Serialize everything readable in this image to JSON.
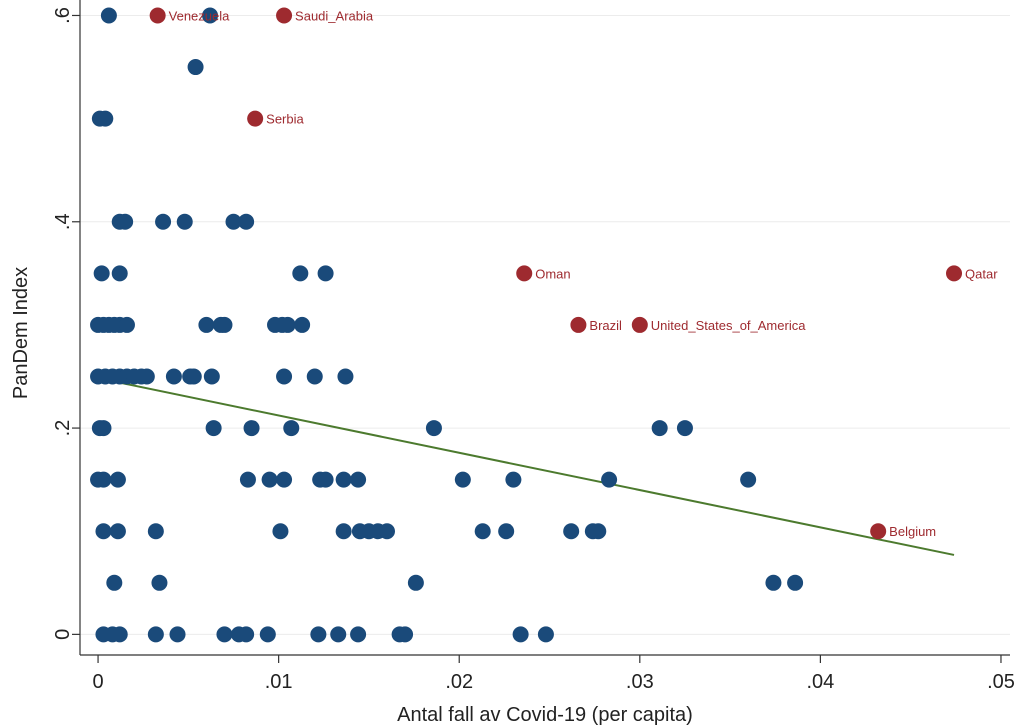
{
  "chart_data": {
    "type": "scatter",
    "title": "",
    "xlabel": "Antal fall av Covid-19 (per capita)",
    "ylabel": "PanDem Index",
    "xlim": [
      -0.001,
      0.0505
    ],
    "ylim": [
      -0.02,
      0.615
    ],
    "grid": true,
    "x_ticks": [
      {
        "value": 0,
        "label": "0"
      },
      {
        "value": 0.01,
        "label": ".01"
      },
      {
        "value": 0.02,
        "label": ".02"
      },
      {
        "value": 0.03,
        "label": ".03"
      },
      {
        "value": 0.04,
        "label": ".04"
      },
      {
        "value": 0.05,
        "label": ".05"
      }
    ],
    "y_ticks": [
      {
        "value": 0,
        "label": "0"
      },
      {
        "value": 0.2,
        "label": ".2"
      },
      {
        "value": 0.4,
        "label": ".4"
      },
      {
        "value": 0.6,
        "label": ".6"
      }
    ],
    "colors": {
      "points": "#1a4a7a",
      "labeled_points": "#9e2a2f",
      "fit_line": "#4c7a2e",
      "grid": "#ececec",
      "axis": "#333333"
    },
    "points": [
      [
        0.0006,
        0.6
      ],
      [
        0.0062,
        0.6
      ],
      [
        0.0054,
        0.55
      ],
      [
        0.0001,
        0.5
      ],
      [
        0.0004,
        0.5
      ],
      [
        0.0012,
        0.4
      ],
      [
        0.0015,
        0.4
      ],
      [
        0.0036,
        0.4
      ],
      [
        0.0048,
        0.4
      ],
      [
        0.0075,
        0.4
      ],
      [
        0.0082,
        0.4
      ],
      [
        0.0002,
        0.35
      ],
      [
        0.0012,
        0.35
      ],
      [
        0.0112,
        0.35
      ],
      [
        0.0126,
        0.35
      ],
      [
        0.0,
        0.3
      ],
      [
        0.0003,
        0.3
      ],
      [
        0.0006,
        0.3
      ],
      [
        0.0009,
        0.3
      ],
      [
        0.0012,
        0.3
      ],
      [
        0.0016,
        0.3
      ],
      [
        0.006,
        0.3
      ],
      [
        0.0068,
        0.3
      ],
      [
        0.007,
        0.3
      ],
      [
        0.0098,
        0.3
      ],
      [
        0.0102,
        0.3
      ],
      [
        0.0105,
        0.3
      ],
      [
        0.0113,
        0.3
      ],
      [
        0.0,
        0.25
      ],
      [
        0.0004,
        0.25
      ],
      [
        0.0008,
        0.25
      ],
      [
        0.0012,
        0.25
      ],
      [
        0.0016,
        0.25
      ],
      [
        0.002,
        0.25
      ],
      [
        0.0024,
        0.25
      ],
      [
        0.0027,
        0.25
      ],
      [
        0.0042,
        0.25
      ],
      [
        0.0051,
        0.25
      ],
      [
        0.0053,
        0.25
      ],
      [
        0.0063,
        0.25
      ],
      [
        0.0103,
        0.25
      ],
      [
        0.012,
        0.25
      ],
      [
        0.0137,
        0.25
      ],
      [
        0.0001,
        0.2
      ],
      [
        0.0003,
        0.2
      ],
      [
        0.0064,
        0.2
      ],
      [
        0.0085,
        0.2
      ],
      [
        0.0107,
        0.2
      ],
      [
        0.0186,
        0.2
      ],
      [
        0.0311,
        0.2
      ],
      [
        0.0325,
        0.2
      ],
      [
        0.0,
        0.15
      ],
      [
        0.0003,
        0.15
      ],
      [
        0.0011,
        0.15
      ],
      [
        0.0083,
        0.15
      ],
      [
        0.0095,
        0.15
      ],
      [
        0.0103,
        0.15
      ],
      [
        0.0123,
        0.15
      ],
      [
        0.0126,
        0.15
      ],
      [
        0.0136,
        0.15
      ],
      [
        0.0144,
        0.15
      ],
      [
        0.0202,
        0.15
      ],
      [
        0.023,
        0.15
      ],
      [
        0.0283,
        0.15
      ],
      [
        0.036,
        0.15
      ],
      [
        0.0003,
        0.1
      ],
      [
        0.0011,
        0.1
      ],
      [
        0.0032,
        0.1
      ],
      [
        0.0101,
        0.1
      ],
      [
        0.0136,
        0.1
      ],
      [
        0.0145,
        0.1
      ],
      [
        0.015,
        0.1
      ],
      [
        0.0155,
        0.1
      ],
      [
        0.016,
        0.1
      ],
      [
        0.0213,
        0.1
      ],
      [
        0.0226,
        0.1
      ],
      [
        0.0262,
        0.1
      ],
      [
        0.0274,
        0.1
      ],
      [
        0.0277,
        0.1
      ],
      [
        0.0009,
        0.05
      ],
      [
        0.0034,
        0.05
      ],
      [
        0.0176,
        0.05
      ],
      [
        0.0374,
        0.05
      ],
      [
        0.0386,
        0.05
      ],
      [
        0.0003,
        0.0
      ],
      [
        0.0008,
        0.0
      ],
      [
        0.0012,
        0.0
      ],
      [
        0.0032,
        0.0
      ],
      [
        0.0044,
        0.0
      ],
      [
        0.007,
        0.0
      ],
      [
        0.0078,
        0.0
      ],
      [
        0.0082,
        0.0
      ],
      [
        0.0094,
        0.0
      ],
      [
        0.0122,
        0.0
      ],
      [
        0.0133,
        0.0
      ],
      [
        0.0144,
        0.0
      ],
      [
        0.0167,
        0.0
      ],
      [
        0.017,
        0.0
      ],
      [
        0.0234,
        0.0
      ],
      [
        0.0248,
        0.0
      ]
    ],
    "labeled_points": [
      {
        "label": "Venezuela",
        "x": 0.0033,
        "y": 0.6
      },
      {
        "label": "Saudi_Arabia",
        "x": 0.0103,
        "y": 0.6
      },
      {
        "label": "Serbia",
        "x": 0.0087,
        "y": 0.5
      },
      {
        "label": "Oman",
        "x": 0.0236,
        "y": 0.35
      },
      {
        "label": "Qatar",
        "x": 0.0474,
        "y": 0.35
      },
      {
        "label": "Brazil",
        "x": 0.0266,
        "y": 0.3
      },
      {
        "label": "United_States_of_America",
        "x": 0.03,
        "y": 0.3
      },
      {
        "label": "Belgium",
        "x": 0.0432,
        "y": 0.1
      }
    ],
    "fit_line": {
      "x": [
        0.0001,
        0.0474
      ],
      "y": [
        0.248,
        0.077
      ]
    }
  }
}
